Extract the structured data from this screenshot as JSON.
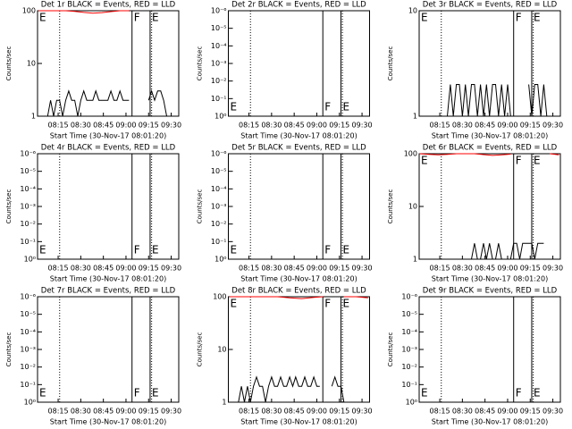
{
  "chart_data": [
    {
      "type": "line",
      "title": "Det 1r BLACK = Events, RED = LLD",
      "xlabel": "Start Time (30-Nov-17 08:01:20)",
      "ylabel": "Counts/sec",
      "log_y": true,
      "xlim": [
        1.33,
        95
      ],
      "xticks": [
        {
          "value": 15,
          "label": "08:15"
        },
        {
          "value": 30,
          "label": "08:30"
        },
        {
          "value": 45,
          "label": "08:45"
        },
        {
          "value": 60,
          "label": "09:00"
        },
        {
          "value": 75,
          "label": "09:15"
        },
        {
          "value": 90,
          "label": "09:30"
        }
      ],
      "ylim": [
        1,
        100
      ],
      "yticks": [
        1,
        10,
        100
      ],
      "dotted": [
        16,
        77
      ],
      "markers": [
        {
          "x": 1.33,
          "label": "E"
        },
        {
          "x": 64,
          "label": "F"
        },
        {
          "x": 76,
          "label": "E"
        }
      ],
      "marker_labels": "top",
      "series": [
        {
          "color": "#000000",
          "x": [
            8,
            10,
            12,
            14,
            16,
            18,
            20,
            22,
            24,
            26,
            28,
            30,
            32,
            34,
            36,
            38,
            40,
            42,
            44,
            46,
            48,
            50,
            52,
            54,
            56,
            58,
            60,
            62,
            64,
            75,
            77,
            79,
            81,
            83,
            85,
            87
          ],
          "values": [
            1,
            2,
            1,
            2,
            2,
            1,
            2,
            3,
            2,
            2,
            1,
            2,
            3,
            2,
            2,
            2,
            3,
            2,
            2,
            2,
            2,
            3,
            2,
            2,
            3,
            2,
            2,
            2,
            null,
            2,
            3,
            2,
            3,
            3,
            2,
            1
          ]
        },
        {
          "color": "#ff0000",
          "x": [
            2,
            8,
            14,
            20,
            26,
            32,
            38,
            44,
            50,
            56,
            62
          ],
          "values": [
            100,
            100,
            100,
            100,
            97,
            93,
            90,
            92,
            96,
            100,
            100
          ]
        }
      ]
    },
    {
      "type": "line",
      "title": "Det 2r BLACK = Events, RED = LLD",
      "xlabel": "Start Time (30-Nov-17 08:01:20)",
      "ylabel": "Counts/sec",
      "log_y": true,
      "xlim": [
        1.33,
        95
      ],
      "xticks": [
        {
          "value": 15,
          "label": "08:15"
        },
        {
          "value": 30,
          "label": "08:30"
        },
        {
          "value": 45,
          "label": "08:45"
        },
        {
          "value": 60,
          "label": "09:00"
        },
        {
          "value": 75,
          "label": "09:15"
        },
        {
          "value": 90,
          "label": "09:30"
        }
      ],
      "ylim": [
        1,
        1e-06
      ],
      "yticks": [
        {
          "value": 1,
          "label": "10⁰"
        },
        {
          "value": 0.1,
          "label": "10⁻¹"
        },
        {
          "value": 0.01,
          "label": "10⁻²"
        },
        {
          "value": 0.001,
          "label": "10⁻³"
        },
        {
          "value": 0.0001,
          "label": "10⁻⁴"
        },
        {
          "value": 1e-05,
          "label": "10⁻⁵"
        },
        {
          "value": 1e-06,
          "label": "10⁻⁶"
        }
      ],
      "dotted": [
        16,
        77
      ],
      "markers": [
        {
          "x": 1.33,
          "label": "E"
        },
        {
          "x": 64,
          "label": "F"
        },
        {
          "x": 76,
          "label": "E"
        }
      ],
      "marker_labels": "bottom",
      "series": []
    },
    {
      "type": "line",
      "title": "Det 3r BLACK = Events, RED = LLD",
      "xlabel": "Start Time (30-Nov-17 08:01:20)",
      "ylabel": "Counts/sec",
      "log_y": true,
      "xlim": [
        1.33,
        95
      ],
      "xticks": [
        {
          "value": 15,
          "label": "08:15"
        },
        {
          "value": 30,
          "label": "08:30"
        },
        {
          "value": 45,
          "label": "08:45"
        },
        {
          "value": 60,
          "label": "09:00"
        },
        {
          "value": 75,
          "label": "09:15"
        },
        {
          "value": 90,
          "label": "09:30"
        }
      ],
      "ylim": [
        1,
        10
      ],
      "yticks": [
        1,
        10
      ],
      "dotted": [
        16,
        77
      ],
      "markers": [
        {
          "x": 1.33,
          "label": "E"
        },
        {
          "x": 64,
          "label": "F"
        },
        {
          "x": 76,
          "label": "E"
        }
      ],
      "marker_labels": "top",
      "series": [
        {
          "color": "#000000",
          "x": [
            20,
            22,
            24,
            26,
            28,
            30,
            32,
            34,
            36,
            38,
            40,
            42,
            44,
            46,
            48,
            50,
            52,
            54,
            56,
            58,
            60,
            62,
            64,
            74,
            76,
            78,
            80,
            82,
            84,
            86,
            88
          ],
          "values": [
            1,
            2,
            1,
            2,
            2,
            1,
            2,
            1,
            2,
            2,
            1,
            2,
            1,
            2,
            1,
            2,
            2,
            1,
            2,
            1,
            2,
            1,
            null,
            2,
            1,
            2,
            2,
            1,
            2,
            1,
            1
          ]
        }
      ]
    },
    {
      "type": "line",
      "title": "Det 4r BLACK = Events, RED = LLD",
      "xlabel": "Start Time (30-Nov-17 08:01:20)",
      "ylabel": "Counts/sec",
      "log_y": true,
      "xlim": [
        1.33,
        95
      ],
      "xticks": [
        {
          "value": 15,
          "label": "08:15"
        },
        {
          "value": 30,
          "label": "08:30"
        },
        {
          "value": 45,
          "label": "08:45"
        },
        {
          "value": 60,
          "label": "09:00"
        },
        {
          "value": 75,
          "label": "09:15"
        },
        {
          "value": 90,
          "label": "09:30"
        }
      ],
      "ylim": [
        1,
        1e-06
      ],
      "yticks": [
        {
          "value": 1,
          "label": "10⁰"
        },
        {
          "value": 0.1,
          "label": "10⁻¹"
        },
        {
          "value": 0.01,
          "label": "10⁻²"
        },
        {
          "value": 0.001,
          "label": "10⁻³"
        },
        {
          "value": 0.0001,
          "label": "10⁻⁴"
        },
        {
          "value": 1e-05,
          "label": "10⁻⁵"
        },
        {
          "value": 1e-06,
          "label": "10⁻⁶"
        }
      ],
      "dotted": [
        16,
        77
      ],
      "markers": [
        {
          "x": 1.33,
          "label": "E"
        },
        {
          "x": 64,
          "label": "F"
        },
        {
          "x": 76,
          "label": "E"
        }
      ],
      "marker_labels": "bottom",
      "series": []
    },
    {
      "type": "line",
      "title": "Det 5r BLACK = Events, RED = LLD",
      "xlabel": "Start Time (30-Nov-17 08:01:20)",
      "ylabel": "Counts/sec",
      "log_y": true,
      "xlim": [
        1.33,
        95
      ],
      "xticks": [
        {
          "value": 15,
          "label": "08:15"
        },
        {
          "value": 30,
          "label": "08:30"
        },
        {
          "value": 45,
          "label": "08:45"
        },
        {
          "value": 60,
          "label": "09:00"
        },
        {
          "value": 75,
          "label": "09:15"
        },
        {
          "value": 90,
          "label": "09:30"
        }
      ],
      "ylim": [
        1,
        1e-06
      ],
      "yticks": [
        {
          "value": 1,
          "label": "10⁰"
        },
        {
          "value": 0.1,
          "label": "10⁻¹"
        },
        {
          "value": 0.01,
          "label": "10⁻²"
        },
        {
          "value": 0.001,
          "label": "10⁻³"
        },
        {
          "value": 0.0001,
          "label": "10⁻⁴"
        },
        {
          "value": 1e-05,
          "label": "10⁻⁵"
        },
        {
          "value": 1e-06,
          "label": "10⁻⁶"
        }
      ],
      "dotted": [
        16,
        77
      ],
      "markers": [
        {
          "x": 1.33,
          "label": "E"
        },
        {
          "x": 64,
          "label": "F"
        },
        {
          "x": 76,
          "label": "E"
        }
      ],
      "marker_labels": "bottom",
      "series": []
    },
    {
      "type": "line",
      "title": "Det 6r BLACK = Events, RED = LLD",
      "xlabel": "Start Time (30-Nov-17 08:01:20)",
      "ylabel": "Counts/sec",
      "log_y": true,
      "xlim": [
        1.33,
        95
      ],
      "xticks": [
        {
          "value": 15,
          "label": "08:15"
        },
        {
          "value": 30,
          "label": "08:30"
        },
        {
          "value": 45,
          "label": "08:45"
        },
        {
          "value": 60,
          "label": "09:00"
        },
        {
          "value": 75,
          "label": "09:15"
        },
        {
          "value": 90,
          "label": "09:30"
        }
      ],
      "ylim": [
        1,
        100
      ],
      "yticks": [
        1,
        10,
        100
      ],
      "dotted": [
        16,
        77
      ],
      "markers": [
        {
          "x": 1.33,
          "label": "E"
        },
        {
          "x": 64,
          "label": "F"
        },
        {
          "x": 76,
          "label": "E"
        }
      ],
      "marker_labels": "top",
      "series": [
        {
          "color": "#000000",
          "x": [
            36,
            38,
            40,
            42,
            44,
            46,
            48,
            50,
            52,
            54,
            56,
            60,
            62,
            64,
            66,
            68,
            70,
            72,
            74,
            76,
            78,
            80,
            82,
            84
          ],
          "values": [
            1,
            2,
            1,
            1,
            2,
            1,
            2,
            1,
            1,
            2,
            1,
            null,
            1,
            2,
            2,
            1,
            2,
            2,
            2,
            2,
            1,
            2,
            2,
            2
          ]
        },
        {
          "color": "#ff0000",
          "x": [
            1.5,
            8,
            14,
            20,
            26,
            32,
            38,
            44,
            50,
            56,
            62,
            70,
            88,
            94
          ],
          "values": [
            100,
            97,
            95,
            97,
            100,
            100,
            100,
            96,
            93,
            95,
            98,
            null,
            100,
            95
          ]
        }
      ]
    },
    {
      "type": "line",
      "title": "Det 7r BLACK = Events, RED = LLD",
      "xlabel": "Start Time (30-Nov-17 08:01:20)",
      "ylabel": "Counts/sec",
      "log_y": true,
      "xlim": [
        1.33,
        95
      ],
      "xticks": [
        {
          "value": 15,
          "label": "08:15"
        },
        {
          "value": 30,
          "label": "08:30"
        },
        {
          "value": 45,
          "label": "08:45"
        },
        {
          "value": 60,
          "label": "09:00"
        },
        {
          "value": 75,
          "label": "09:15"
        },
        {
          "value": 90,
          "label": "09:30"
        }
      ],
      "ylim": [
        1,
        1e-06
      ],
      "yticks": [
        {
          "value": 1,
          "label": "10⁰"
        },
        {
          "value": 0.1,
          "label": "10⁻¹"
        },
        {
          "value": 0.01,
          "label": "10⁻²"
        },
        {
          "value": 0.001,
          "label": "10⁻³"
        },
        {
          "value": 0.0001,
          "label": "10⁻⁴"
        },
        {
          "value": 1e-05,
          "label": "10⁻⁵"
        },
        {
          "value": 1e-06,
          "label": "10⁻⁶"
        }
      ],
      "dotted": [
        16,
        77
      ],
      "markers": [
        {
          "x": 1.33,
          "label": "E"
        },
        {
          "x": 64,
          "label": "F"
        },
        {
          "x": 76,
          "label": "E"
        }
      ],
      "marker_labels": "bottom",
      "series": []
    },
    {
      "type": "line",
      "title": "Det 8r BLACK = Events, RED = LLD",
      "xlabel": "Start Time (30-Nov-17 08:01:20)",
      "ylabel": "Counts/sec",
      "log_y": true,
      "xlim": [
        1.33,
        95
      ],
      "xticks": [
        {
          "value": 15,
          "label": "08:15"
        },
        {
          "value": 30,
          "label": "08:30"
        },
        {
          "value": 45,
          "label": "08:45"
        },
        {
          "value": 60,
          "label": "09:00"
        },
        {
          "value": 75,
          "label": "09:15"
        },
        {
          "value": 90,
          "label": "09:30"
        }
      ],
      "ylim": [
        1,
        100
      ],
      "yticks": [
        1,
        10,
        100
      ],
      "dotted": [
        16,
        77
      ],
      "markers": [
        {
          "x": 1.33,
          "label": "E"
        },
        {
          "x": 64,
          "label": "F"
        },
        {
          "x": 76,
          "label": "E"
        }
      ],
      "marker_labels": "top",
      "series": [
        {
          "color": "#000000",
          "x": [
            8,
            10,
            12,
            14,
            16,
            18,
            20,
            22,
            24,
            26,
            28,
            30,
            32,
            34,
            36,
            38,
            40,
            42,
            44,
            46,
            48,
            50,
            52,
            54,
            56,
            58,
            60,
            62,
            64,
            70,
            72,
            74,
            76,
            78,
            80,
            82
          ],
          "values": [
            1,
            2,
            1,
            2,
            1,
            2,
            3,
            2,
            2,
            1,
            2,
            3,
            2,
            2,
            3,
            2,
            2,
            3,
            2,
            3,
            2,
            2,
            3,
            2,
            2,
            3,
            2,
            2,
            null,
            2,
            3,
            2,
            2,
            1,
            1,
            1
          ]
        },
        {
          "color": "#ff0000",
          "x": [
            2,
            10,
            18,
            26,
            34,
            42,
            50,
            58,
            64,
            70,
            78,
            86,
            94
          ],
          "values": [
            100,
            100,
            100,
            100,
            100,
            95,
            92,
            97,
            100,
            null,
            100,
            100,
            95
          ]
        }
      ]
    },
    {
      "type": "line",
      "title": "Det 9r BLACK = Events, RED = LLD",
      "xlabel": "Start Time (30-Nov-17 08:01:20)",
      "ylabel": "Counts/sec",
      "log_y": true,
      "xlim": [
        1.33,
        95
      ],
      "xticks": [
        {
          "value": 15,
          "label": "08:15"
        },
        {
          "value": 30,
          "label": "08:30"
        },
        {
          "value": 45,
          "label": "08:45"
        },
        {
          "value": 60,
          "label": "09:00"
        },
        {
          "value": 75,
          "label": "09:15"
        },
        {
          "value": 90,
          "label": "09:30"
        }
      ],
      "ylim": [
        1,
        1e-06
      ],
      "yticks": [
        {
          "value": 1,
          "label": "10⁰"
        },
        {
          "value": 0.1,
          "label": "10⁻¹"
        },
        {
          "value": 0.01,
          "label": "10⁻²"
        },
        {
          "value": 0.001,
          "label": "10⁻³"
        },
        {
          "value": 0.0001,
          "label": "10⁻⁴"
        },
        {
          "value": 1e-05,
          "label": "10⁻⁵"
        },
        {
          "value": 1e-06,
          "label": "10⁻⁶"
        }
      ],
      "dotted": [
        16,
        77
      ],
      "markers": [
        {
          "x": 1.33,
          "label": "E"
        },
        {
          "x": 64,
          "label": "F"
        },
        {
          "x": 76,
          "label": "E"
        }
      ],
      "marker_labels": "bottom",
      "series": []
    }
  ]
}
